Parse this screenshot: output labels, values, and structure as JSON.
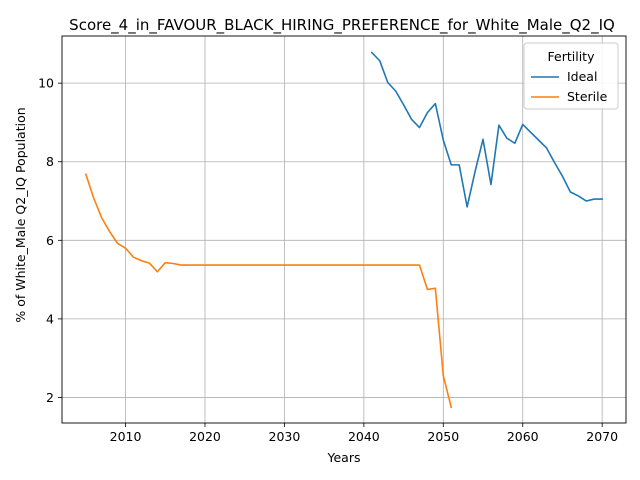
{
  "chart_data": {
    "type": "line",
    "title": "Score_4_in_FAVOUR_BLACK_HIRING_PREFERENCE_for_White_Male_Q2_IQ",
    "xlabel": "Years",
    "ylabel": "% of White_Male Q2_IQ Population",
    "xlim": [
      2002,
      2073
    ],
    "ylim": [
      1.35,
      11.2
    ],
    "xticks": [
      2010,
      2020,
      2030,
      2040,
      2050,
      2060,
      2070
    ],
    "yticks": [
      2,
      4,
      6,
      8,
      10
    ],
    "grid": true,
    "legend": {
      "title": "Fertility",
      "placement": "top-right"
    },
    "series": [
      {
        "name": "Ideal",
        "color": "#1f77b4",
        "x": [
          2041,
          2042,
          2043,
          2044,
          2045,
          2046,
          2047,
          2048,
          2049,
          2050,
          2051,
          2052,
          2053,
          2054,
          2055,
          2056,
          2057,
          2058,
          2059,
          2060,
          2061,
          2062,
          2063,
          2064,
          2065,
          2066,
          2067,
          2068,
          2069,
          2070
        ],
        "y": [
          10.78,
          10.57,
          10.02,
          9.8,
          9.45,
          9.08,
          8.87,
          9.25,
          9.48,
          8.55,
          7.92,
          7.92,
          6.85,
          7.75,
          8.57,
          7.42,
          8.93,
          8.6,
          8.47,
          8.95,
          8.75,
          8.55,
          8.35,
          7.98,
          7.63,
          7.23,
          7.13,
          7.0,
          7.05,
          7.05
        ]
      },
      {
        "name": "Sterile",
        "color": "#ff7f0e",
        "x": [
          2005,
          2006,
          2007,
          2008,
          2009,
          2010,
          2011,
          2012,
          2013,
          2014,
          2015,
          2016,
          2017,
          2018,
          2019,
          2020,
          2021,
          2022,
          2023,
          2024,
          2025,
          2026,
          2027,
          2028,
          2029,
          2030,
          2031,
          2032,
          2033,
          2034,
          2035,
          2036,
          2037,
          2038,
          2039,
          2040,
          2041,
          2042,
          2043,
          2044,
          2045,
          2046,
          2047,
          2048,
          2049,
          2050,
          2051
        ],
        "y": [
          7.68,
          7.07,
          6.57,
          6.22,
          5.92,
          5.8,
          5.57,
          5.48,
          5.42,
          5.2,
          5.43,
          5.41,
          5.37,
          5.37,
          5.37,
          5.37,
          5.37,
          5.37,
          5.37,
          5.37,
          5.37,
          5.37,
          5.37,
          5.37,
          5.37,
          5.37,
          5.37,
          5.37,
          5.37,
          5.37,
          5.37,
          5.37,
          5.37,
          5.37,
          5.37,
          5.37,
          5.37,
          5.37,
          5.37,
          5.37,
          5.37,
          5.37,
          5.37,
          4.75,
          4.78,
          2.55,
          1.75
        ]
      }
    ]
  }
}
